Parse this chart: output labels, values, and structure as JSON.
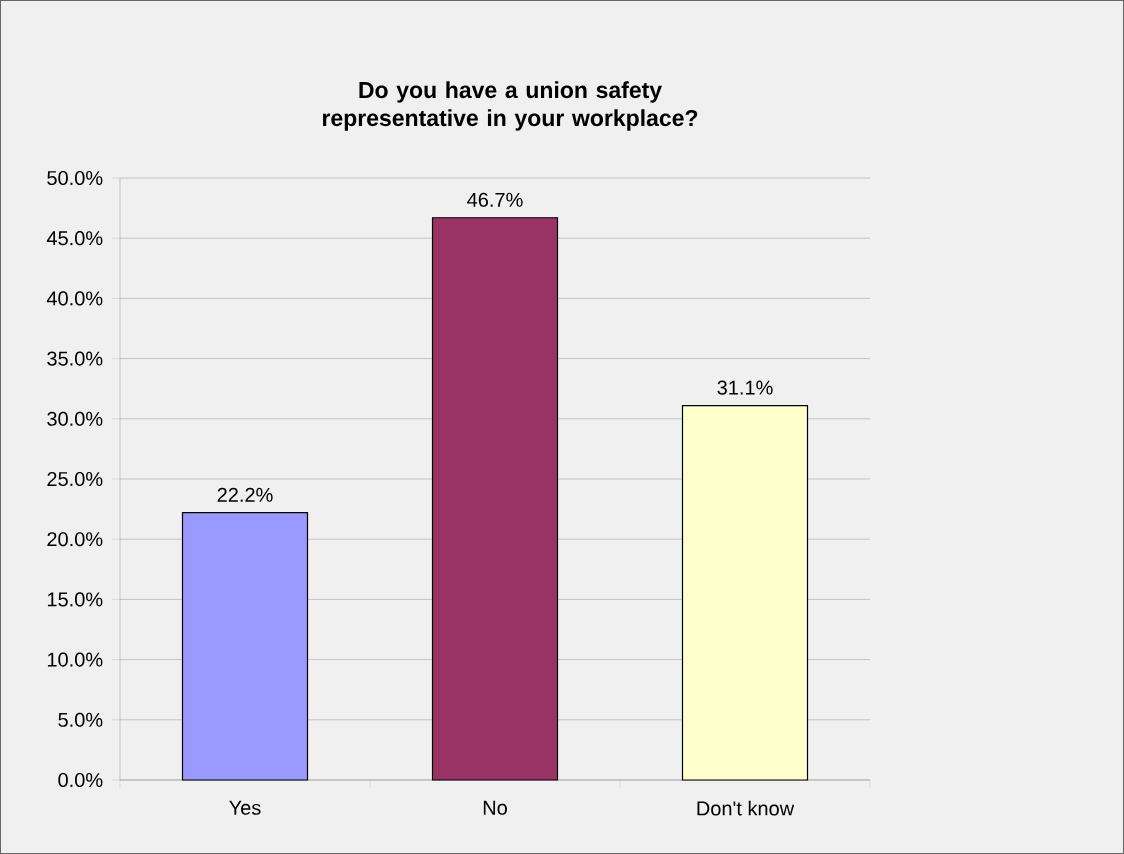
{
  "chart_data": {
    "type": "bar",
    "title": "Do you have a union safety representative in your workplace?",
    "categories": [
      "Yes",
      "No",
      "Don't know"
    ],
    "values": [
      22.2,
      46.7,
      31.1
    ],
    "colors": [
      "#9999ff",
      "#993366",
      "#ffffcc"
    ],
    "value_labels": [
      "22.2%",
      "46.7%",
      "31.1%"
    ],
    "ylim": [
      0,
      50
    ],
    "yticks": [
      {
        "value": 0,
        "label": "0.0%"
      },
      {
        "value": 5,
        "label": "5.0%"
      },
      {
        "value": 10,
        "label": "10.0%"
      },
      {
        "value": 15,
        "label": "15.0%"
      },
      {
        "value": 20,
        "label": "20.0%"
      },
      {
        "value": 25,
        "label": "25.0%"
      },
      {
        "value": 30,
        "label": "30.0%"
      },
      {
        "value": 35,
        "label": "35.0%"
      },
      {
        "value": 40,
        "label": "40.0%"
      },
      {
        "value": 45,
        "label": "45.0%"
      },
      {
        "value": 50,
        "label": "50.0%"
      }
    ],
    "grid": "y"
  }
}
